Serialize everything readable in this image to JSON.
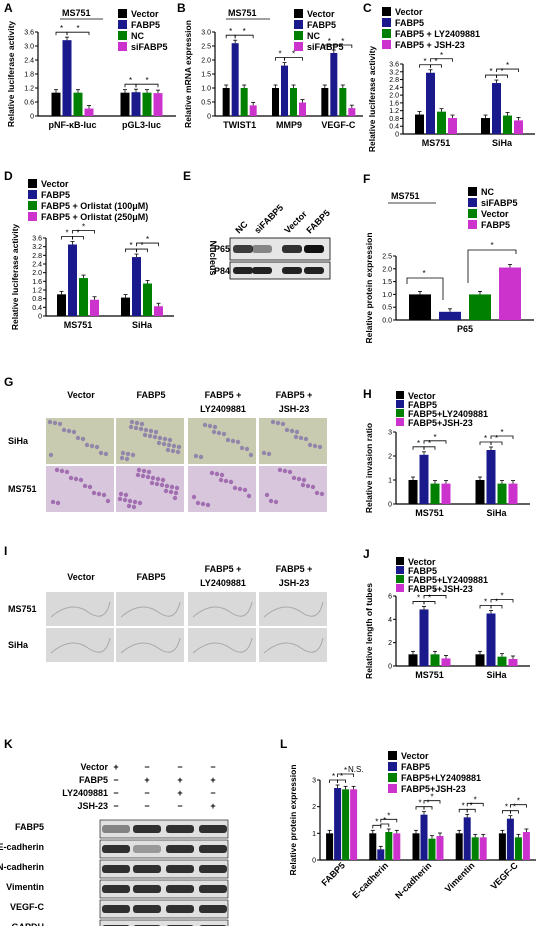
{
  "colors": {
    "Vector": "#000000",
    "NC": "#008000",
    "FABP5": "#1a1a8c",
    "siFABP5": "#cc33cc",
    "LY": "#008000",
    "JSH": "#cc33cc",
    "Orl100": "#008000",
    "Orl250": "#cc33cc"
  },
  "panels": {
    "A": "A",
    "B": "B",
    "C": "C",
    "D": "D",
    "E": "E",
    "F": "F",
    "G": "G",
    "H": "H",
    "I": "I",
    "J": "J",
    "K": "K",
    "L": "L"
  },
  "panelE": {
    "lanes": [
      "NC",
      "siFABP5",
      "Vector",
      "FABP5"
    ],
    "rows": [
      "P65",
      "P84"
    ],
    "side_label": "Nucleus"
  },
  "panelG": {
    "cols": [
      "Vector",
      "FABP5",
      "FABP5 +",
      "FABP5 +"
    ],
    "cols2": [
      "",
      "",
      "LY2409881",
      "JSH-23"
    ],
    "rows": [
      "SiHa",
      "MS751"
    ]
  },
  "panelI": {
    "cols": [
      "Vector",
      "FABP5",
      "FABP5 +",
      "FABP5 +"
    ],
    "cols2": [
      "",
      "",
      "LY2409881",
      "JSH-23"
    ],
    "rows": [
      "MS751",
      "SiHa"
    ]
  },
  "panelK": {
    "treatments": [
      "Vector",
      "FABP5",
      "LY2409881",
      "JSH-23"
    ],
    "signs": [
      [
        "+",
        "−",
        "−",
        "−"
      ],
      [
        "−",
        "+",
        "+",
        "+"
      ],
      [
        "−",
        "−",
        "+",
        "−"
      ],
      [
        "−",
        "−",
        "−",
        "+"
      ]
    ],
    "proteins": [
      "FABP5",
      "E-cadherin",
      "N-cadherin",
      "Vimentin",
      "VEGF-C",
      "GAPDH"
    ]
  },
  "chart_data": [
    {
      "id": "A",
      "type": "bar",
      "title": "MS751",
      "categories": [
        "pNF-κB-luc",
        "pGL3-luc"
      ],
      "ylabel": "Relative luciferase activity",
      "ylim": [
        0,
        3.6
      ],
      "yticks": [
        "0",
        "0.6",
        "1.2",
        "1.8",
        "2.4",
        "3.0",
        "3.6"
      ],
      "series": [
        {
          "name": "Vector",
          "values": [
            1.0,
            1.0
          ]
        },
        {
          "name": "FABP5",
          "values": [
            3.25,
            1.02
          ]
        },
        {
          "name": "NC",
          "values": [
            1.0,
            1.0
          ]
        },
        {
          "name": "siFABP5",
          "values": [
            0.32,
            0.98
          ]
        }
      ]
    },
    {
      "id": "B",
      "type": "bar",
      "title": "MS751",
      "categories": [
        "TWIST1",
        "MMP9",
        "VEGF-C"
      ],
      "ylabel": "Relative mRNA expression",
      "ylim": [
        0,
        3.0
      ],
      "yticks": [
        "0",
        "0.5",
        "1.0",
        "1.5",
        "2.0",
        "2.5",
        "3.0"
      ],
      "series": [
        {
          "name": "Vector",
          "values": [
            1.0,
            1.0,
            1.0
          ]
        },
        {
          "name": "FABP5",
          "values": [
            2.6,
            1.8,
            2.25
          ]
        },
        {
          "name": "NC",
          "values": [
            1.0,
            1.0,
            1.0
          ]
        },
        {
          "name": "siFABP5",
          "values": [
            0.38,
            0.48,
            0.28
          ]
        }
      ]
    },
    {
      "id": "C",
      "type": "bar",
      "categories": [
        "MS751",
        "SiHa"
      ],
      "ylabel": "Relative luciferase activity",
      "ylim": [
        0,
        3.6
      ],
      "yticks": [
        "0",
        "0.4",
        "0.8",
        "1.2",
        "1.6",
        "2.0",
        "2.4",
        "2.8",
        "3.2",
        "3.6"
      ],
      "series": [
        {
          "name": "Vector",
          "values": [
            1.0,
            0.82
          ]
        },
        {
          "name": "FABP5",
          "values": [
            3.15,
            2.62
          ]
        },
        {
          "name": "FABP5 + LY2409881",
          "values": [
            1.15,
            0.95
          ]
        },
        {
          "name": "FABP5 + JSH-23",
          "values": [
            0.82,
            0.7
          ]
        }
      ]
    },
    {
      "id": "D",
      "type": "bar",
      "categories": [
        "MS751",
        "SiHa"
      ],
      "ylabel": "Relative luciferase activity",
      "ylim": [
        0,
        3.6
      ],
      "yticks": [
        "0",
        "0.4",
        "0.8",
        "1.2",
        "1.6",
        "2.0",
        "2.4",
        "2.8",
        "3.2",
        "3.6"
      ],
      "series": [
        {
          "name": "Vector",
          "values": [
            1.0,
            0.85
          ]
        },
        {
          "name": "FABP5",
          "values": [
            3.3,
            2.72
          ]
        },
        {
          "name": "FABP5 + Orlistat (100μM)",
          "values": [
            1.75,
            1.5
          ]
        },
        {
          "name": "FABP5 + Orlistat (250μM)",
          "values": [
            0.75,
            0.45
          ]
        }
      ]
    },
    {
      "id": "F",
      "type": "bar",
      "title": "MS751",
      "categories": [
        "P65"
      ],
      "ylabel": "Relative protein expression",
      "ylim": [
        0,
        2.5
      ],
      "yticks": [
        "0.0",
        "0.5",
        "1.0",
        "1.5",
        "2.0",
        "2.5"
      ],
      "series": [
        {
          "name": "NC",
          "values": [
            1.0
          ]
        },
        {
          "name": "siFABP5",
          "values": [
            0.32
          ]
        },
        {
          "name": "Vector",
          "values": [
            1.0
          ]
        },
        {
          "name": "FABP5",
          "values": [
            2.05
          ]
        }
      ]
    },
    {
      "id": "H",
      "type": "bar",
      "categories": [
        "MS751",
        "SiHa"
      ],
      "ylabel": "Relative invasion ratio",
      "ylim": [
        0,
        3
      ],
      "yticks": [
        "0",
        "1",
        "2",
        "3"
      ],
      "series": [
        {
          "name": "Vector",
          "values": [
            1.0,
            1.0
          ]
        },
        {
          "name": "FABP5",
          "values": [
            2.05,
            2.25
          ]
        },
        {
          "name": "FABP5+LY2409881",
          "values": [
            0.85,
            0.85
          ]
        },
        {
          "name": "FABP5+JSH-23",
          "values": [
            0.85,
            0.85
          ]
        }
      ]
    },
    {
      "id": "J",
      "type": "bar",
      "categories": [
        "MS751",
        "SiHa"
      ],
      "ylabel": "Relative length of tubes",
      "ylim": [
        0,
        6
      ],
      "yticks": [
        "0",
        "2",
        "4",
        "6"
      ],
      "series": [
        {
          "name": "Vector",
          "values": [
            1.0,
            1.0
          ]
        },
        {
          "name": "FABP5",
          "values": [
            4.85,
            4.5
          ]
        },
        {
          "name": "FABP5+LY2409881",
          "values": [
            1.0,
            0.8
          ]
        },
        {
          "name": "FABP5+JSH-23",
          "values": [
            0.65,
            0.6
          ]
        }
      ]
    },
    {
      "id": "L",
      "type": "bar",
      "categories": [
        "FABP5",
        "E-cadherin",
        "N-cadherin",
        "Vimentin",
        "VEGF-C"
      ],
      "ylabel": "Relative protein expression",
      "ylim": [
        0,
        3
      ],
      "yticks": [
        "0",
        "1",
        "2",
        "3"
      ],
      "annotation": "N.S.",
      "series": [
        {
          "name": "Vector",
          "values": [
            1.0,
            1.0,
            1.0,
            1.0,
            1.0
          ]
        },
        {
          "name": "FABP5",
          "values": [
            2.7,
            0.4,
            1.7,
            1.6,
            1.55
          ]
        },
        {
          "name": "FABP5+LY2409881",
          "values": [
            2.65,
            1.05,
            0.8,
            0.85,
            0.85
          ]
        },
        {
          "name": "FABP5+JSH-23",
          "values": [
            2.65,
            1.0,
            0.9,
            0.85,
            1.05
          ]
        }
      ]
    }
  ]
}
